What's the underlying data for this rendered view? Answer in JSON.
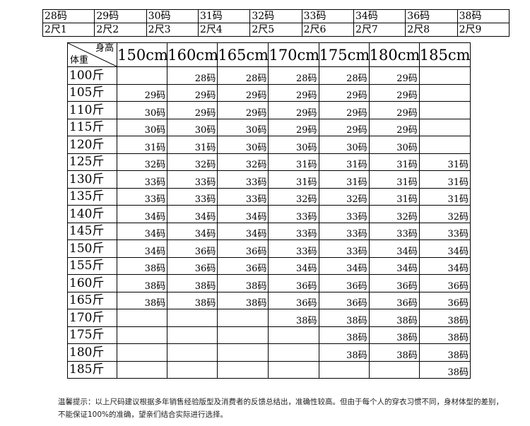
{
  "waist_table": {
    "sizes": [
      "28码",
      "29码",
      "30码",
      "31码",
      "32码",
      "33码",
      "34码",
      "36码",
      "38码"
    ],
    "waists": [
      "2尺1",
      "2尺2",
      "2尺3",
      "2尺4",
      "2尺5",
      "2尺6",
      "2尺7",
      "2尺8",
      "2尺9"
    ]
  },
  "size_table": {
    "height_label": "身高",
    "weight_label": "体重",
    "heights": [
      "150cm",
      "160cm",
      "165cm",
      "170cm",
      "175cm",
      "180cm",
      "185cm"
    ],
    "rows": [
      {
        "weight": "100斤",
        "cells": [
          "",
          "28码",
          "28码",
          "28码",
          "28码",
          "29码",
          ""
        ]
      },
      {
        "weight": "105斤",
        "cells": [
          "29码",
          "29码",
          "29码",
          "29码",
          "29码",
          "29码",
          ""
        ]
      },
      {
        "weight": "110斤",
        "cells": [
          "30码",
          "29码",
          "29码",
          "29码",
          "29码",
          "29码",
          ""
        ]
      },
      {
        "weight": "115斤",
        "cells": [
          "30码",
          "30码",
          "30码",
          "29码",
          "29码",
          "29码",
          ""
        ]
      },
      {
        "weight": "120斤",
        "cells": [
          "31码",
          "31码",
          "30码",
          "30码",
          "30码",
          "30码",
          ""
        ]
      },
      {
        "weight": "125斤",
        "cells": [
          "32码",
          "32码",
          "32码",
          "31码",
          "31码",
          "31码",
          "31码"
        ]
      },
      {
        "weight": "130斤",
        "cells": [
          "33码",
          "33码",
          "33码",
          "31码",
          "31码",
          "31码",
          "31码"
        ]
      },
      {
        "weight": "135斤",
        "cells": [
          "33码",
          "33码",
          "33码",
          "32码",
          "32码",
          "31码",
          "31码"
        ]
      },
      {
        "weight": "140斤",
        "cells": [
          "34码",
          "34码",
          "34码",
          "33码",
          "33码",
          "32码",
          "32码"
        ]
      },
      {
        "weight": "145斤",
        "cells": [
          "34码",
          "34码",
          "34码",
          "33码",
          "33码",
          "33码",
          "33码"
        ]
      },
      {
        "weight": "150斤",
        "cells": [
          "34码",
          "36码",
          "36码",
          "33码",
          "33码",
          "34码",
          "34码"
        ]
      },
      {
        "weight": "155斤",
        "cells": [
          "38码",
          "36码",
          "36码",
          "34码",
          "34码",
          "34码",
          "34码"
        ]
      },
      {
        "weight": "160斤",
        "cells": [
          "38码",
          "38码",
          "38码",
          "36码",
          "36码",
          "36码",
          "36码"
        ]
      },
      {
        "weight": "165斤",
        "cells": [
          "38码",
          "38码",
          "38码",
          "36码",
          "36码",
          "36码",
          "36码"
        ]
      },
      {
        "weight": "170斤",
        "cells": [
          "",
          "",
          "",
          "38码",
          "38码",
          "38码",
          "38码"
        ]
      },
      {
        "weight": "175斤",
        "cells": [
          "",
          "",
          "",
          "",
          "38码",
          "38码",
          "38码"
        ]
      },
      {
        "weight": "180斤",
        "cells": [
          "",
          "",
          "",
          "",
          "38码",
          "38码",
          "38码"
        ]
      },
      {
        "weight": "185斤",
        "cells": [
          "",
          "",
          "",
          "",
          "",
          "",
          "38码"
        ]
      }
    ]
  },
  "note": {
    "line1": "温馨提示：以上尺码建议根据多年销售经验版型及消费者的反馈总结出，准确性较高。但由于每个人的穿衣习惯不同，身材体型的差别，",
    "line2": "不能保证100%的准确，望亲们结合实际进行选择。"
  }
}
